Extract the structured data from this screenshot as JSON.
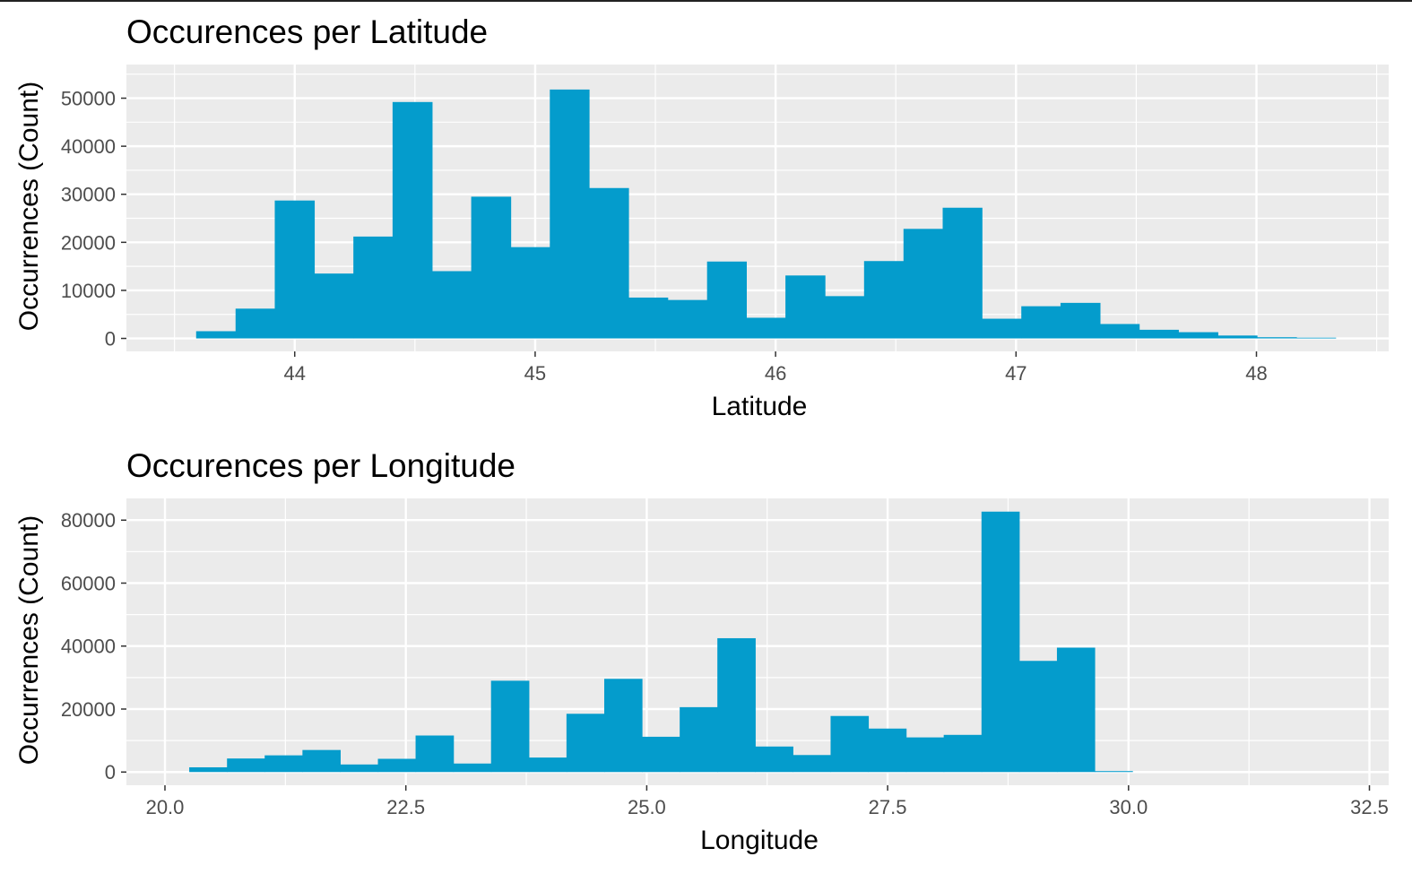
{
  "chart_data": [
    {
      "type": "bar",
      "title": "Occurences per Latitude",
      "xlabel": "Latitude",
      "ylabel": "Occurrences (Count)",
      "xlim": [
        43.3,
        48.55
      ],
      "ylim": [
        -2700,
        57000
      ],
      "x_ticks": [
        "44",
        "45",
        "46",
        "47",
        "48"
      ],
      "x_tick_values": [
        44,
        45,
        46,
        47,
        48
      ],
      "y_ticks": [
        "0",
        "10000",
        "20000",
        "30000",
        "40000",
        "50000"
      ],
      "y_tick_values": [
        0,
        10000,
        20000,
        30000,
        40000,
        50000
      ],
      "bin_width": 0.1634,
      "bins": [
        {
          "x0": 43.59,
          "x1": 43.754,
          "value": 1500
        },
        {
          "x0": 43.754,
          "x1": 43.917,
          "value": 6200
        },
        {
          "x0": 43.917,
          "x1": 44.081,
          "value": 28700
        },
        {
          "x0": 44.081,
          "x1": 44.244,
          "value": 13500
        },
        {
          "x0": 44.244,
          "x1": 44.407,
          "value": 21200
        },
        {
          "x0": 44.407,
          "x1": 44.571,
          "value": 49200
        },
        {
          "x0": 44.571,
          "x1": 44.734,
          "value": 14000
        },
        {
          "x0": 44.734,
          "x1": 44.898,
          "value": 29500
        },
        {
          "x0": 44.898,
          "x1": 45.061,
          "value": 19000
        },
        {
          "x0": 45.061,
          "x1": 45.224,
          "value": 51800
        },
        {
          "x0": 45.224,
          "x1": 45.388,
          "value": 31300
        },
        {
          "x0": 45.388,
          "x1": 45.551,
          "value": 8500
        },
        {
          "x0": 45.551,
          "x1": 45.715,
          "value": 8000
        },
        {
          "x0": 45.715,
          "x1": 45.878,
          "value": 16000
        },
        {
          "x0": 45.878,
          "x1": 46.041,
          "value": 4300
        },
        {
          "x0": 46.041,
          "x1": 46.205,
          "value": 13100
        },
        {
          "x0": 46.205,
          "x1": 46.368,
          "value": 8800
        },
        {
          "x0": 46.368,
          "x1": 46.532,
          "value": 16100
        },
        {
          "x0": 46.532,
          "x1": 46.695,
          "value": 22800
        },
        {
          "x0": 46.695,
          "x1": 46.858,
          "value": 27200
        },
        {
          "x0": 46.858,
          "x1": 47.022,
          "value": 4100
        },
        {
          "x0": 47.022,
          "x1": 47.185,
          "value": 6700
        },
        {
          "x0": 47.185,
          "x1": 47.349,
          "value": 7400
        },
        {
          "x0": 47.349,
          "x1": 47.512,
          "value": 3000
        },
        {
          "x0": 47.512,
          "x1": 47.675,
          "value": 1800
        },
        {
          "x0": 47.675,
          "x1": 47.839,
          "value": 1300
        },
        {
          "x0": 47.839,
          "x1": 48.002,
          "value": 600
        },
        {
          "x0": 48.002,
          "x1": 48.166,
          "value": 250
        },
        {
          "x0": 48.166,
          "x1": 48.329,
          "value": 150
        }
      ],
      "grid": true,
      "colors": {
        "bar": "#049ccc",
        "panel": "#ebebeb",
        "grid": "#ffffff"
      }
    },
    {
      "type": "bar",
      "title": "Occurences per Longitude",
      "xlabel": "Longitude",
      "ylabel": "Occurrences (Count)",
      "xlim": [
        19.6,
        32.7
      ],
      "ylim": [
        -4200,
        86900
      ],
      "x_ticks": [
        "20.0",
        "22.5",
        "25.0",
        "27.5",
        "30.0",
        "32.5"
      ],
      "x_tick_values": [
        20.0,
        22.5,
        25.0,
        27.5,
        30.0,
        32.5
      ],
      "y_ticks": [
        "0",
        "20000",
        "40000",
        "60000",
        "80000"
      ],
      "y_tick_values": [
        0,
        20000,
        40000,
        60000,
        80000
      ],
      "bin_width": 0.3915,
      "bins": [
        {
          "x0": 20.252,
          "x1": 20.644,
          "value": 1500
        },
        {
          "x0": 20.644,
          "x1": 21.035,
          "value": 4300
        },
        {
          "x0": 21.035,
          "x1": 21.427,
          "value": 5300
        },
        {
          "x0": 21.427,
          "x1": 21.818,
          "value": 7000
        },
        {
          "x0": 21.818,
          "x1": 22.21,
          "value": 2400
        },
        {
          "x0": 22.21,
          "x1": 22.601,
          "value": 4200
        },
        {
          "x0": 22.601,
          "x1": 22.993,
          "value": 11600
        },
        {
          "x0": 22.993,
          "x1": 23.384,
          "value": 2700
        },
        {
          "x0": 23.384,
          "x1": 23.776,
          "value": 29000
        },
        {
          "x0": 23.776,
          "x1": 24.167,
          "value": 4600
        },
        {
          "x0": 24.167,
          "x1": 24.559,
          "value": 18500
        },
        {
          "x0": 24.559,
          "x1": 24.95,
          "value": 29600
        },
        {
          "x0": 24.95,
          "x1": 25.342,
          "value": 11200
        },
        {
          "x0": 25.342,
          "x1": 25.733,
          "value": 20600
        },
        {
          "x0": 25.733,
          "x1": 26.125,
          "value": 42500
        },
        {
          "x0": 26.125,
          "x1": 26.516,
          "value": 8100
        },
        {
          "x0": 26.516,
          "x1": 26.908,
          "value": 5400
        },
        {
          "x0": 26.908,
          "x1": 27.299,
          "value": 17800
        },
        {
          "x0": 27.299,
          "x1": 27.691,
          "value": 13800
        },
        {
          "x0": 27.691,
          "x1": 28.082,
          "value": 11000
        },
        {
          "x0": 28.082,
          "x1": 28.474,
          "value": 11800
        },
        {
          "x0": 28.474,
          "x1": 28.865,
          "value": 82700
        },
        {
          "x0": 28.865,
          "x1": 29.257,
          "value": 35300
        },
        {
          "x0": 29.257,
          "x1": 29.648,
          "value": 39500
        },
        {
          "x0": 29.648,
          "x1": 30.04,
          "value": 300
        }
      ],
      "grid": true,
      "colors": {
        "bar": "#049ccc",
        "panel": "#ebebeb",
        "grid": "#ffffff"
      }
    }
  ]
}
